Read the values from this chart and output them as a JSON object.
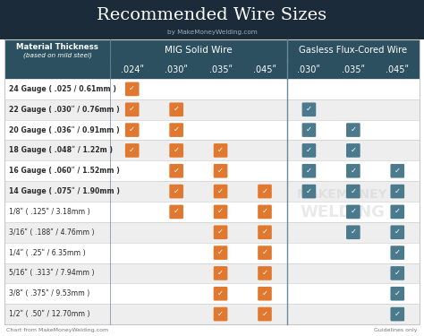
{
  "title": "Recommended Wire Sizes",
  "subtitle": "by MakeMoneyWelding.com",
  "footer_left": "Chart from MakeMoneyWelding.com",
  "footer_right": "Guidelines only",
  "watermark1": "MAKEMONEY",
  "watermark2": "WELDING",
  "col_group1": "MIG Solid Wire",
  "col_group2": "Gasless Flux-Cored Wire",
  "col_headers": [
    ".024ʺ",
    ".030ʺ",
    ".035ʺ",
    ".045ʺ",
    ".030ʺ",
    ".035ʺ",
    ".045ʺ"
  ],
  "row_labels": [
    "24 Gauge ( .025 / 0.61mm )",
    "22 Gauge ( .030ʺ / 0.76mm )",
    "20 Gauge ( .036ʺ / 0.91mm )",
    "18 Gauge ( .048ʺ / 1.22m )",
    "16 Gauge ( .060ʺ / 1.52mm )",
    "14 Gauge ( .075ʺ / 1.90mm )",
    "1/8ʺ ( .125ʺ / 3.18mm )",
    "3/16ʺ ( .188ʺ / 4.76mm )",
    "1/4ʺ ( .25ʺ / 6.35mm )",
    "5/16ʺ ( .313ʺ / 7.94mm )",
    "3/8ʺ ( .375ʺ / 9.53mm )",
    "1/2ʺ ( .50ʺ / 12.70mm )"
  ],
  "row_bold": [
    true,
    true,
    true,
    true,
    true,
    true,
    false,
    false,
    false,
    false,
    false,
    false
  ],
  "checks": [
    [
      1,
      0,
      0,
      0,
      0,
      0,
      0
    ],
    [
      1,
      1,
      0,
      0,
      1,
      0,
      0
    ],
    [
      1,
      1,
      0,
      0,
      1,
      1,
      0
    ],
    [
      1,
      1,
      1,
      0,
      1,
      1,
      0
    ],
    [
      0,
      1,
      1,
      0,
      1,
      1,
      1
    ],
    [
      0,
      1,
      1,
      1,
      1,
      1,
      1
    ],
    [
      0,
      1,
      1,
      1,
      0,
      1,
      1
    ],
    [
      0,
      0,
      1,
      1,
      0,
      1,
      1
    ],
    [
      0,
      0,
      1,
      1,
      0,
      0,
      1
    ],
    [
      0,
      0,
      1,
      1,
      0,
      0,
      1
    ],
    [
      0,
      0,
      1,
      1,
      0,
      0,
      1
    ],
    [
      0,
      0,
      1,
      1,
      0,
      0,
      1
    ]
  ],
  "bg_title": "#1c2b3a",
  "bg_header": "#2d5060",
  "bg_row_white": "#ffffff",
  "bg_row_gray": "#eeeeee",
  "check_orange": "#e07830",
  "check_blue": "#4a7a8c",
  "text_white": "#ffffff",
  "text_dark": "#2a2a2a",
  "border_color": "#c8c8c8",
  "divider_color": "#6a8a9a",
  "footer_color": "#777777",
  "watermark_color": "#d0d0d0"
}
